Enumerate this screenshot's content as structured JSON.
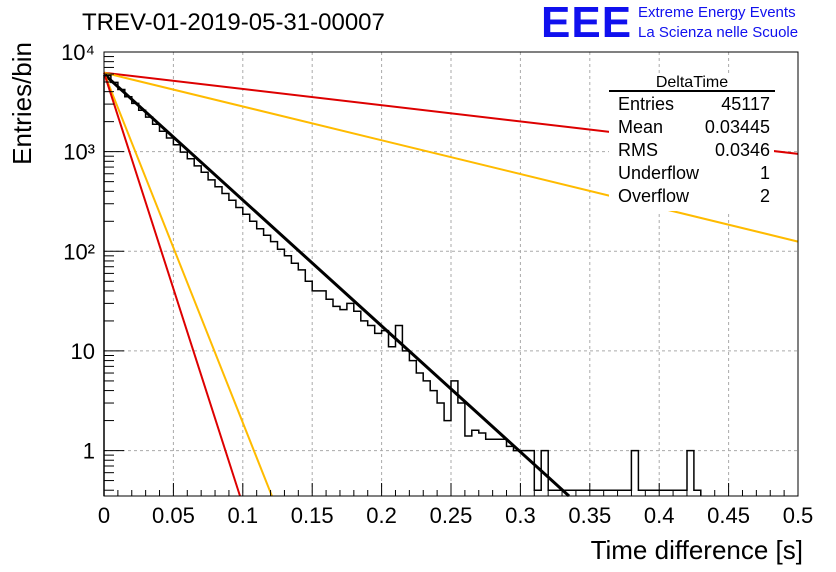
{
  "title": "TREV-01-2019-05-31-00007",
  "logo": {
    "letters": "EEE",
    "line1": "Extreme Energy Events",
    "line2": "La Scienza nelle Scuole"
  },
  "stats_box": {
    "name": "DeltaTime",
    "rows": [
      {
        "label": "Entries",
        "value": "45117"
      },
      {
        "label": "Mean",
        "value": "0.03445"
      },
      {
        "label": "RMS",
        "value": "0.0346"
      },
      {
        "label": "Underflow",
        "value": "1"
      },
      {
        "label": "Overflow",
        "value": "2"
      }
    ]
  },
  "chart_data": {
    "type": "line",
    "xlabel": "Time difference [s]",
    "ylabel": "Entries/bin",
    "xlim": [
      0,
      0.5
    ],
    "ylim": [
      0.35,
      10000
    ],
    "y_scale": "log",
    "grid": true,
    "x_ticks": [
      0,
      0.05,
      0.1,
      0.15,
      0.2,
      0.25,
      0.3,
      0.35,
      0.4,
      0.45,
      0.5
    ],
    "x_tick_labels": [
      "0",
      "0.05",
      "0.1",
      "0.15",
      "0.2",
      "0.25",
      "0.3",
      "0.35",
      "0.4",
      "0.45",
      "0.5"
    ],
    "y_ticks": [
      1,
      10,
      100,
      1000,
      10000
    ],
    "y_tick_labels": [
      "1",
      "10",
      "10²",
      "10³",
      "10⁴"
    ],
    "histogram": {
      "bin_edges": [
        0.0,
        0.005,
        0.01,
        0.015,
        0.02,
        0.025,
        0.03,
        0.035,
        0.04,
        0.045,
        0.05,
        0.055,
        0.06,
        0.065,
        0.07,
        0.075,
        0.08,
        0.085,
        0.09,
        0.095,
        0.1,
        0.105,
        0.11,
        0.115,
        0.12,
        0.125,
        0.13,
        0.135,
        0.14,
        0.145,
        0.15,
        0.155,
        0.16,
        0.165,
        0.17,
        0.175,
        0.18,
        0.185,
        0.19,
        0.195,
        0.2,
        0.205,
        0.21,
        0.215,
        0.22,
        0.225,
        0.23,
        0.235,
        0.24,
        0.245,
        0.25,
        0.255,
        0.26,
        0.265,
        0.27,
        0.275,
        0.28,
        0.285,
        0.29,
        0.295,
        0.3,
        0.305,
        0.31,
        0.315,
        0.32,
        0.325,
        0.33,
        0.335,
        0.34,
        0.345,
        0.35,
        0.355,
        0.36,
        0.365,
        0.37,
        0.375,
        0.38,
        0.385,
        0.39,
        0.395,
        0.4,
        0.405,
        0.41,
        0.415,
        0.42,
        0.425,
        0.43
      ],
      "counts": [
        5800,
        4950,
        4200,
        3550,
        3050,
        2600,
        2220,
        1880,
        1600,
        1370,
        1170,
        990,
        850,
        720,
        620,
        520,
        445,
        380,
        325,
        275,
        235,
        200,
        168,
        145,
        125,
        105,
        90,
        76,
        65,
        50,
        40,
        40,
        33,
        28,
        26,
        30,
        25,
        20,
        18,
        15,
        16,
        11,
        18,
        10,
        8,
        6,
        5,
        4,
        3,
        2,
        5,
        3,
        1.4,
        1.6,
        1.5,
        1.3,
        1.3,
        1.3,
        1.1,
        1.0,
        1.0,
        1.0,
        0.4,
        1.0,
        0.4,
        0.4,
        0.4,
        0.4,
        0.4,
        0.4,
        0.4,
        0.4,
        0.4,
        0.4,
        0.4,
        0.4,
        1.0,
        0.4,
        0.4,
        0.4,
        0.4,
        0.4,
        0.4,
        0.4,
        1.0,
        0.4
      ]
    },
    "series": [
      {
        "color": "#000000",
        "x": [
          0,
          0.335
        ],
        "y": [
          6000,
          0.35
        ]
      },
      {
        "color": "#dd0000",
        "x": [
          0,
          0.5
        ],
        "y": [
          6200,
          950
        ]
      },
      {
        "color": "#ffbb00",
        "x": [
          0,
          0.5
        ],
        "y": [
          6200,
          125
        ]
      },
      {
        "color": "#ffbb00",
        "x": [
          0,
          0.121
        ],
        "y": [
          6200,
          0.35
        ]
      },
      {
        "color": "#dd0000",
        "x": [
          0,
          0.098
        ],
        "y": [
          6200,
          0.35
        ]
      }
    ]
  }
}
